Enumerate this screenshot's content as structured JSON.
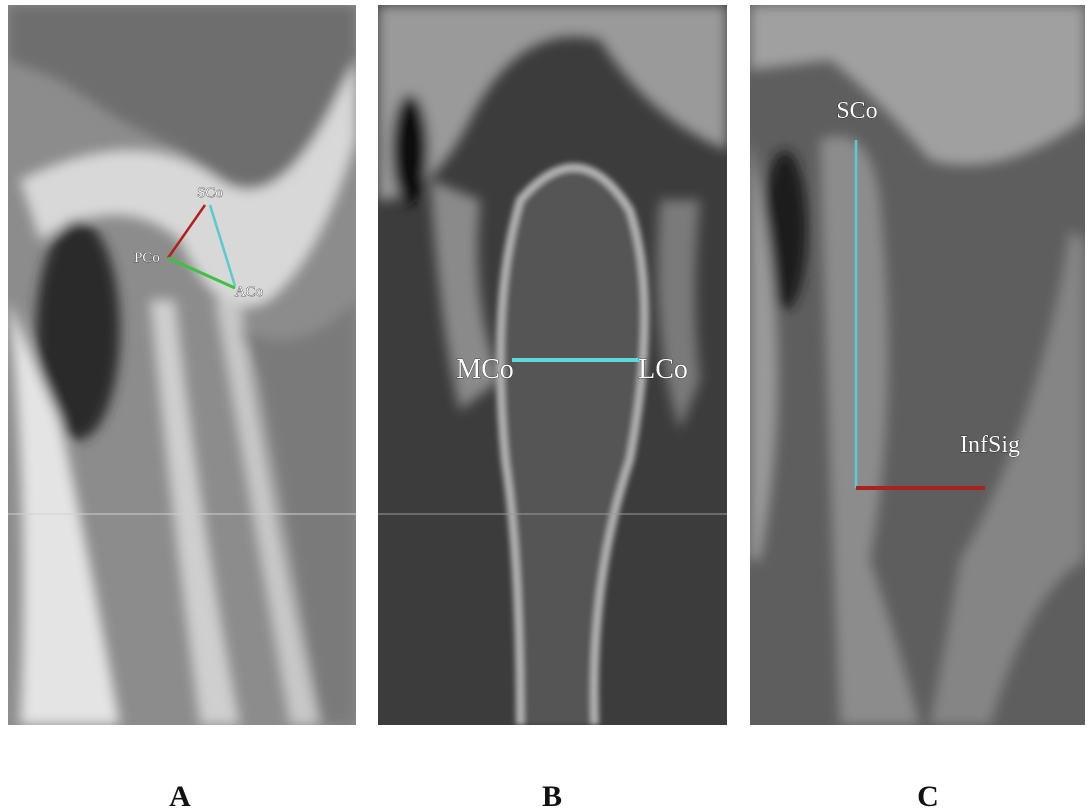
{
  "panels": [
    {
      "caption": "A",
      "landmarks": [
        "PCo",
        "SCo",
        "ACo"
      ]
    },
    {
      "caption": "B",
      "landmarks": [
        "MCo",
        "LCo"
      ]
    },
    {
      "caption": "C",
      "landmarks": [
        "SCo",
        "InfSig"
      ]
    }
  ]
}
